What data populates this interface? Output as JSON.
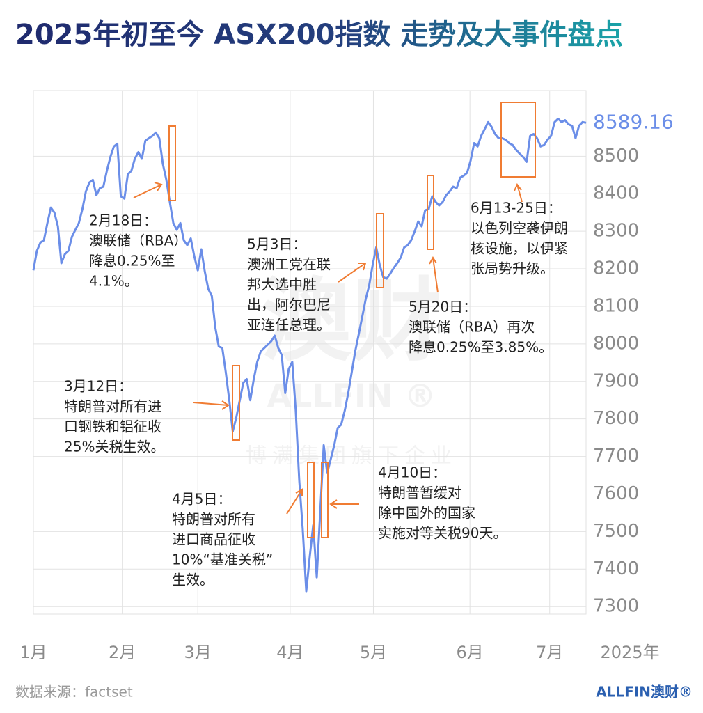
{
  "chart_data": {
    "type": "line",
    "title": "2025年初至今 ASX200指数 走势及大事件盘点",
    "xlabel": "2025年",
    "series": [
      {
        "name": "ASX200",
        "color": "#6b8ee8",
        "values": [
          8196,
          8248,
          8270,
          8276,
          8322,
          8363,
          8350,
          8313,
          8215,
          8239,
          8248,
          8285,
          8304,
          8322,
          8359,
          8406,
          8430,
          8437,
          8396,
          8415,
          8419,
          8461,
          8498,
          8526,
          8533,
          8393,
          8387,
          8452,
          8461,
          8493,
          8511,
          8493,
          8541,
          8548,
          8554,
          8563,
          8548,
          8480,
          8437,
          8378,
          8322,
          8304,
          8322,
          8276,
          8263,
          8281,
          8233,
          8196,
          8252,
          8193,
          8146,
          8128,
          8044,
          7993,
          7989,
          7924,
          7850,
          7767,
          7804,
          7850,
          7896,
          7906,
          7850,
          7906,
          7952,
          7980,
          7989,
          7998,
          8007,
          8022,
          7989,
          7970,
          7869,
          7933,
          7952,
          7822,
          7637,
          7507,
          7341,
          7433,
          7517,
          7378,
          7554,
          7730,
          7656,
          7693,
          7730,
          7776,
          7785,
          7822,
          7869,
          7924,
          7980,
          8026,
          8072,
          8119,
          8156,
          8211,
          8257,
          8211,
          8178,
          8174,
          8187,
          8202,
          8215,
          8230,
          8257,
          8263,
          8276,
          8300,
          8326,
          8313,
          8356,
          8359,
          8393,
          8378,
          8369,
          8378,
          8396,
          8406,
          8419,
          8415,
          8443,
          8448,
          8456,
          8489,
          8535,
          8526,
          8554,
          8572,
          8591,
          8578,
          8559,
          8548,
          8548,
          8544,
          8535,
          8530,
          8517,
          8507,
          8498,
          8485,
          8554,
          8559,
          8548,
          8526,
          8530,
          8544,
          8554,
          8591,
          8600,
          8591,
          8596,
          8585,
          8581,
          8548,
          8581,
          8591,
          8589.16
        ]
      }
    ],
    "xlim": [
      0,
      158
    ],
    "xticks": [
      {
        "value": 0,
        "label": "1月"
      },
      {
        "value": 25.4,
        "label": "2月"
      },
      {
        "value": 47,
        "label": "3月"
      },
      {
        "value": 73.4,
        "label": "4月"
      },
      {
        "value": 97.2,
        "label": "5月"
      },
      {
        "value": 124.8,
        "label": "6月"
      },
      {
        "value": 147.6,
        "label": "7月"
      }
    ],
    "ylim": [
      7280,
      8675
    ],
    "yticks": [
      7300,
      7400,
      7500,
      7600,
      7700,
      7800,
      7900,
      8000,
      8100,
      8200,
      8300,
      8400,
      8500
    ],
    "grid": true,
    "annotations": [
      [
        "2月18日：",
        "澳联储（RBA）",
        "降息0.25%至",
        "4.1%。"
      ],
      [
        "3月12日：",
        "特朗普对所有进",
        "口钢铁和铝征收",
        "25%关税生效。"
      ],
      [
        "4月5日：",
        "特朗普对所有",
        "进口商品征收",
        "10%“基准关税”",
        "生效。"
      ],
      [
        "5月3日：",
        "澳洲工党在联",
        "邦大选中胜",
        "出，阿尔巴尼",
        "亚连任总理。"
      ],
      [
        "4月10日：",
        "特朗普暂缓对",
        "除中国外的国家",
        "实施对等关税90天。"
      ],
      [
        "5月20日：",
        "澳联储（RBA）再次",
        "降息0.25%至3.85%。"
      ],
      [
        "6月13-25日：",
        "以色列空袭伊朗",
        "核设施，以伊紧",
        "张局势升级。"
      ]
    ]
  },
  "watermark": {
    "logo": "澳财",
    "brand": "ALLFIN ®",
    "tagline": "博满集团旗下企业"
  },
  "footer": {
    "source": "数据来源：factset",
    "logo": "ALLFIN澳财®"
  }
}
